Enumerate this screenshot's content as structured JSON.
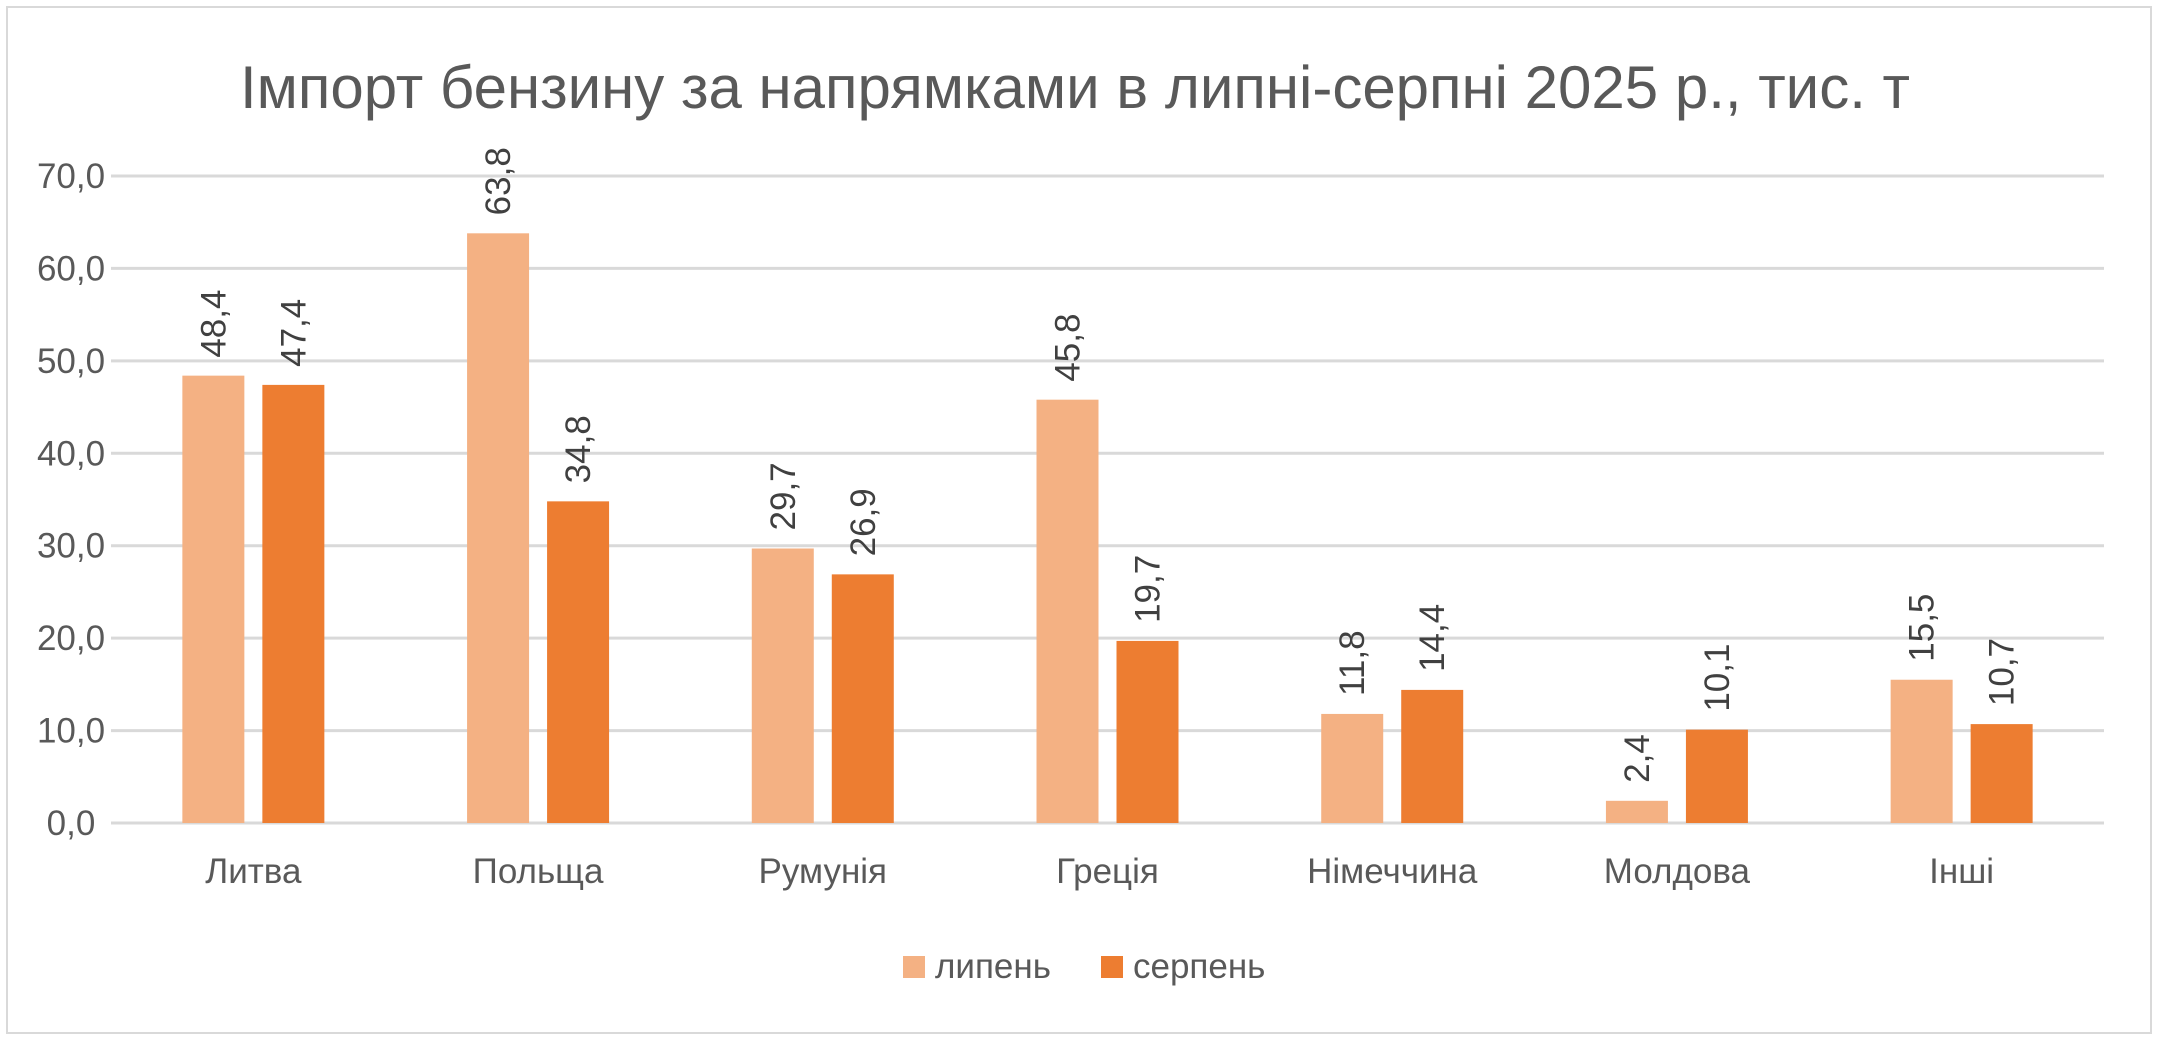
{
  "chart_data": {
    "type": "bar",
    "title": "Імпорт бензину за напрямками в липні-серпні 2025 р., тис. т",
    "xlabel": "",
    "ylabel": "",
    "categories": [
      "Литва",
      "Польща",
      "Румунія",
      "Греція",
      "Німеччина",
      "Молдова",
      "Інші"
    ],
    "series": [
      {
        "name": "липень",
        "color": "#F4B183",
        "values": [
          48.4,
          63.8,
          29.7,
          45.8,
          11.8,
          2.4,
          15.5
        ],
        "labels": [
          "48,4",
          "63,8",
          "29,7",
          "45,8",
          "11,8",
          "2,4",
          "15,5"
        ]
      },
      {
        "name": "серпень",
        "color": "#ED7D31",
        "values": [
          47.4,
          34.8,
          26.9,
          19.7,
          14.4,
          10.1,
          10.7
        ],
        "labels": [
          "47,4",
          "34,8",
          "26,9",
          "19,7",
          "14,4",
          "10,1",
          "10,7"
        ]
      }
    ],
    "ylim": [
      0,
      70
    ],
    "yticks": [
      0,
      10,
      20,
      30,
      40,
      50,
      60,
      70
    ],
    "ytick_labels": [
      "0,0",
      "10,0",
      "20,0",
      "30,0",
      "40,0",
      "50,0",
      "60,0",
      "70,0"
    ],
    "grid": true,
    "legend_position": "bottom",
    "data_labels_rotated": true
  }
}
